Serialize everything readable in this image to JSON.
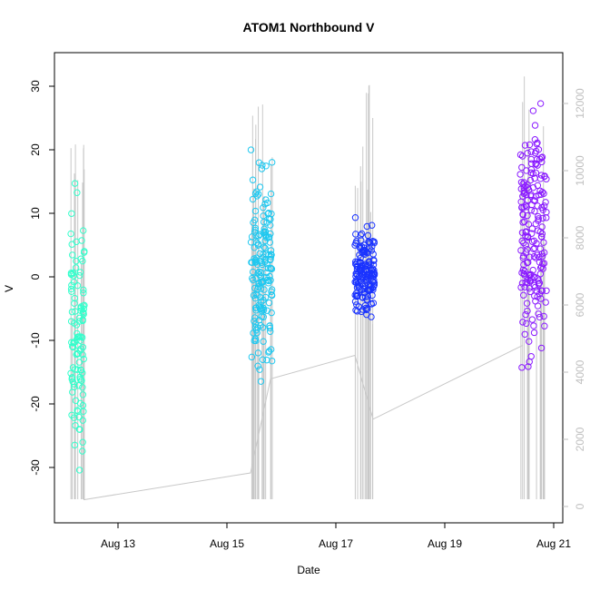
{
  "chart_data": {
    "type": "scatter",
    "title": "ATOM1 Northbound V",
    "xlabel": "Date",
    "ylabel": "V",
    "x_ticks": [
      "Aug 13",
      "Aug 15",
      "Aug 17",
      "Aug 19",
      "Aug 21"
    ],
    "y_ticks": [
      "-30",
      "-20",
      "-10",
      "0",
      "10",
      "20",
      "30"
    ],
    "y2_ticks": [
      "0",
      "2000",
      "4000",
      "6000",
      "8000",
      "10000",
      "12000"
    ],
    "x_domain_days": [
      "Aug 12 (~Aug 12.2)",
      "Aug 21"
    ],
    "ylim": [
      -38,
      35
    ],
    "y2lim": [
      -500,
      13300
    ],
    "grid": false,
    "legend": "none",
    "colors": {
      "axis": "#000000",
      "secondary_axis": "#bfbfbf",
      "background_series": "#c8c8c8",
      "segment_1": "#33ffcc",
      "segment_2": "#1ec8f0",
      "segment_3": "#1a33ff",
      "segment_4": "#8a1aff"
    },
    "segments": [
      {
        "x_start": "Aug 12",
        "x_end": "Aug 12",
        "v_min": -36,
        "v_max": 19,
        "v_center": -5,
        "color": "#33ffcc"
      },
      {
        "x_start": "Aug 15",
        "x_end": "Aug 15",
        "v_min": -21,
        "v_max": 23,
        "v_center": 2,
        "color": "#1ec8f0"
      },
      {
        "x_start": "Aug 17",
        "x_end": "Aug 17",
        "v_min": -9,
        "v_max": 10,
        "v_center": 1,
        "color": "#1a33ff"
      },
      {
        "x_start": "Aug 20",
        "x_end": "Aug 20",
        "v_min": -19,
        "v_max": 32,
        "v_center": 5,
        "color": "#8a1aff"
      }
    ],
    "background_lines": [
      {
        "x": "Aug 12",
        "y2_high": 11000,
        "y2_low": 0
      },
      {
        "x": "Aug 15",
        "y2_high": 12700,
        "y2_low": 0
      },
      {
        "x": "Aug 17",
        "y2_high": 12900,
        "y2_low": 0
      },
      {
        "x": "Aug 20",
        "y2_high": 13000,
        "y2_low": 0
      }
    ],
    "connecting_line": [
      {
        "x": "Aug 12",
        "y2": 200
      },
      {
        "x": "Aug 15",
        "y2": 1000
      },
      {
        "x": "Aug 15",
        "y2": 3800
      },
      {
        "x": "Aug 17",
        "y2": 4500
      },
      {
        "x": "Aug 17",
        "y2": 2600
      },
      {
        "x": "Aug 20",
        "y2": 4800
      }
    ]
  }
}
